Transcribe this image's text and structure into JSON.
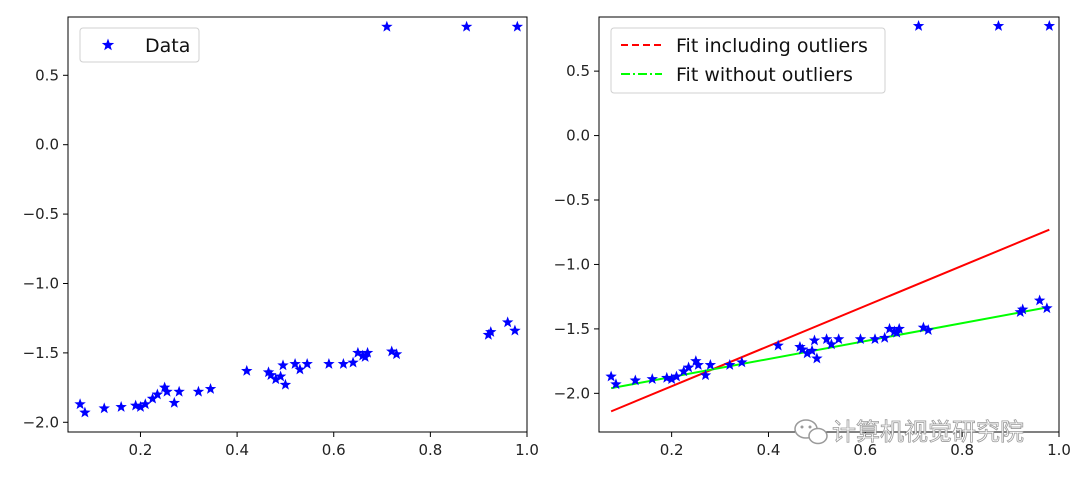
{
  "chart_data": [
    {
      "type": "scatter",
      "title": "",
      "xlabel": "",
      "ylabel": "",
      "xlim": [
        0.05,
        1.0
      ],
      "ylim": [
        -2.07,
        0.92
      ],
      "xticks": [
        0.2,
        0.4,
        0.6,
        0.8,
        1.0
      ],
      "xtick_labels": [
        "0.2",
        "0.4",
        "0.6",
        "0.8",
        "1.0"
      ],
      "yticks": [
        0.5,
        0.0,
        -0.5,
        -1.0,
        -1.5,
        -2.0
      ],
      "ytick_labels": [
        "0.5",
        "0.0",
        "−0.5",
        "−1.0",
        "−1.5",
        "−2.0"
      ],
      "legend_position": "top-left",
      "series": [
        {
          "name": "Data",
          "marker": "star",
          "color": "#0000ff",
          "x": [
            0.075,
            0.085,
            0.125,
            0.16,
            0.19,
            0.2,
            0.21,
            0.225,
            0.235,
            0.25,
            0.255,
            0.27,
            0.28,
            0.32,
            0.345,
            0.42,
            0.465,
            0.47,
            0.48,
            0.49,
            0.5,
            0.495,
            0.52,
            0.53,
            0.545,
            0.59,
            0.62,
            0.64,
            0.65,
            0.66,
            0.665,
            0.67,
            0.72,
            0.73,
            0.71,
            0.875,
            0.92,
            0.925,
            0.96,
            0.975,
            0.98
          ],
          "y": [
            -1.87,
            -1.93,
            -1.9,
            -1.89,
            -1.88,
            -1.89,
            -1.87,
            -1.83,
            -1.8,
            -1.75,
            -1.78,
            -1.86,
            -1.78,
            -1.78,
            -1.76,
            -1.63,
            -1.64,
            -1.66,
            -1.69,
            -1.67,
            -1.73,
            -1.59,
            -1.58,
            -1.62,
            -1.58,
            -1.58,
            -1.58,
            -1.57,
            -1.5,
            -1.52,
            -1.53,
            -1.5,
            -1.49,
            -1.51,
            0.85,
            0.85,
            -1.37,
            -1.35,
            -1.28,
            -1.34,
            0.85
          ]
        }
      ]
    },
    {
      "type": "line",
      "title": "",
      "xlabel": "",
      "ylabel": "",
      "xlim": [
        0.05,
        1.0
      ],
      "ylim": [
        -2.3,
        0.92
      ],
      "xticks": [
        0.2,
        0.4,
        0.6,
        0.8,
        1.0
      ],
      "xtick_labels": [
        "0.2",
        "0.4",
        "0.6",
        "0.8",
        "1.0"
      ],
      "yticks": [
        0.5,
        0.0,
        -0.5,
        -1.0,
        -1.5,
        -2.0
      ],
      "ytick_labels": [
        "0.5",
        "0.0",
        "−0.5",
        "−1.0",
        "−1.5",
        "−2.0"
      ],
      "legend_position": "top-left",
      "points": {
        "marker": "star",
        "color": "#0000ff",
        "x": [
          0.075,
          0.085,
          0.125,
          0.16,
          0.19,
          0.2,
          0.21,
          0.225,
          0.235,
          0.25,
          0.255,
          0.27,
          0.28,
          0.32,
          0.345,
          0.42,
          0.465,
          0.47,
          0.48,
          0.49,
          0.5,
          0.495,
          0.52,
          0.53,
          0.545,
          0.59,
          0.62,
          0.64,
          0.65,
          0.66,
          0.665,
          0.67,
          0.72,
          0.73,
          0.71,
          0.875,
          0.92,
          0.925,
          0.96,
          0.975,
          0.98
        ],
        "y": [
          -1.87,
          -1.93,
          -1.9,
          -1.89,
          -1.88,
          -1.89,
          -1.87,
          -1.83,
          -1.8,
          -1.75,
          -1.78,
          -1.86,
          -1.78,
          -1.78,
          -1.76,
          -1.63,
          -1.64,
          -1.66,
          -1.69,
          -1.67,
          -1.73,
          -1.59,
          -1.58,
          -1.62,
          -1.58,
          -1.58,
          -1.58,
          -1.57,
          -1.5,
          -1.52,
          -1.53,
          -1.5,
          -1.49,
          -1.51,
          0.85,
          0.85,
          -1.37,
          -1.35,
          -1.28,
          -1.34,
          0.85
        ]
      },
      "series": [
        {
          "name": "Fit including outliers",
          "color": "#ff0000",
          "dash": "dashed",
          "x": [
            0.075,
            0.98
          ],
          "y": [
            -2.14,
            -0.73
          ]
        },
        {
          "name": "Fit without outliers",
          "color": "#00ff00",
          "dash": "dashdot",
          "x": [
            0.075,
            0.98
          ],
          "y": [
            -1.96,
            -1.33
          ]
        }
      ]
    }
  ],
  "watermark": {
    "icon": "wechat-icon",
    "text": "计算机视觉研究院"
  }
}
